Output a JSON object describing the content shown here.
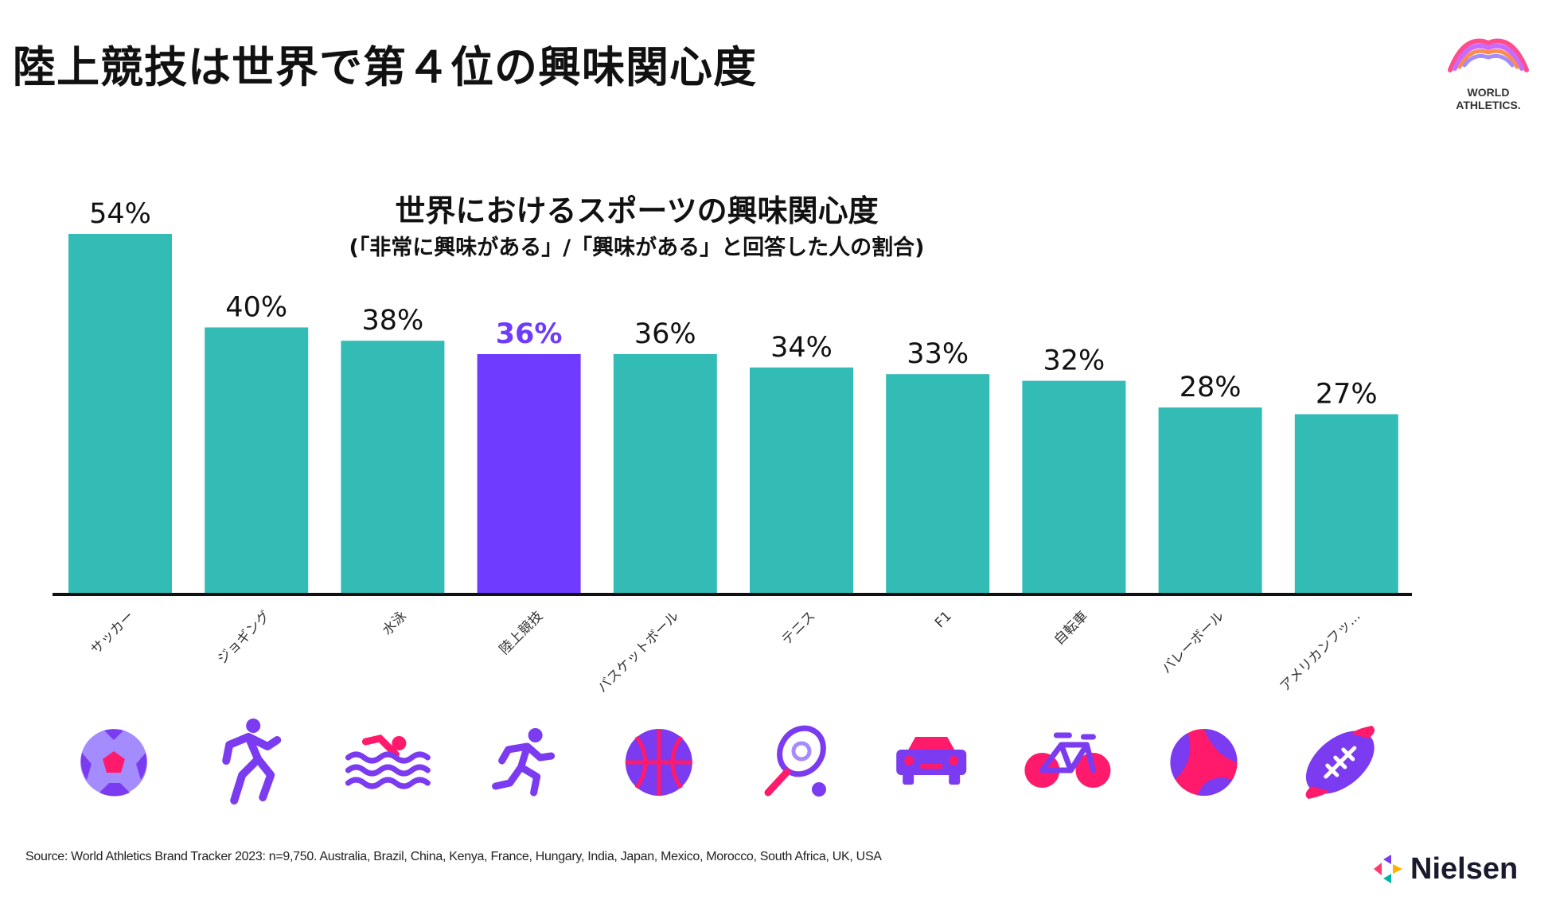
{
  "page": {
    "title": "陸上競技は世界で第４位の興味関心度",
    "source": "Source: World Athletics Brand Tracker 2023: n=9,750. Australia, Brazil, China, Kenya, France, Hungary, India, Japan, Mexico, Morocco, South Africa,  UK, USA",
    "logo_world_athletics": [
      "WORLD",
      "ATHLETICS."
    ],
    "logo_nielsen": "Nielsen"
  },
  "colors": {
    "teal": "#33bbb5",
    "purple": "#6e3bff",
    "icon_purple": "#7b3bf0",
    "icon_pink": "#ff1a6b",
    "icon_light": "#a48cff",
    "axis": "#111111"
  },
  "chart_data": {
    "type": "bar",
    "title": "世界におけるスポーツの興味関心度",
    "subtitle": "(「非常に興味がある」/「興味がある」と回答した人の割合)",
    "xlabel": "",
    "ylabel": "",
    "ylim": [
      0,
      54
    ],
    "unit": "%",
    "grid": false,
    "highlight_index": 3,
    "categories": [
      "サッカー",
      "ジョギング",
      "水泳",
      "陸上競技",
      "バスケットボール",
      "テニス",
      "F1",
      "自転車",
      "バレーボール",
      "アメリカンフッ..."
    ],
    "values": [
      54,
      40,
      38,
      36,
      36,
      34,
      33,
      32,
      28,
      27
    ],
    "data_labels": [
      "54%",
      "40%",
      "38%",
      "36%",
      "36%",
      "34%",
      "33%",
      "32%",
      "28%",
      "27%"
    ],
    "icons": [
      "soccer-ball-icon",
      "running-figure-icon",
      "swimming-icon",
      "runner-icon",
      "basketball-icon",
      "tennis-racket-icon",
      "car-icon",
      "bicycle-icon",
      "volleyball-icon",
      "american-football-icon"
    ]
  }
}
